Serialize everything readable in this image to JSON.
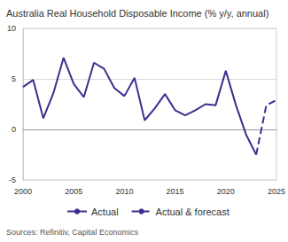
{
  "chart_data": {
    "type": "line",
    "title": "Australia Real Household Disposable Income (% y/y, annual)",
    "source": "Sources: Refinitiv, Capital Economics",
    "x": [
      2000,
      2001,
      2002,
      2003,
      2004,
      2005,
      2006,
      2007,
      2008,
      2009,
      2010,
      2011,
      2012,
      2013,
      2014,
      2015,
      2016,
      2017,
      2018,
      2019,
      2020,
      2021,
      2022,
      2023,
      2024,
      2025
    ],
    "series": [
      {
        "name": "Actual",
        "color": "#3b2f8f",
        "line_style": "solid",
        "values": [
          4.2,
          4.9,
          1.1,
          3.6,
          7.1,
          4.5,
          3.2,
          6.6,
          6.0,
          4.1,
          3.3,
          5.1,
          0.9,
          2.1,
          3.5,
          1.9,
          1.4,
          1.9,
          2.5,
          2.4,
          5.8,
          2.4,
          -0.5,
          -2.5,
          null,
          null
        ]
      },
      {
        "name": "Actual & forecast",
        "color": "#3b2f8f",
        "line_style": "dashed",
        "values": [
          null,
          null,
          null,
          null,
          null,
          null,
          null,
          null,
          null,
          null,
          null,
          null,
          null,
          null,
          null,
          null,
          null,
          null,
          null,
          null,
          null,
          null,
          null,
          -2.5,
          2.4,
          2.9
        ]
      }
    ],
    "xlim": [
      2000,
      2025
    ],
    "xticks": [
      2000,
      2005,
      2010,
      2015,
      2020,
      2025
    ],
    "ylim": [
      -5,
      10
    ],
    "yticks": [
      -5,
      0,
      5,
      10
    ],
    "grid": true,
    "legend": "bottom"
  }
}
